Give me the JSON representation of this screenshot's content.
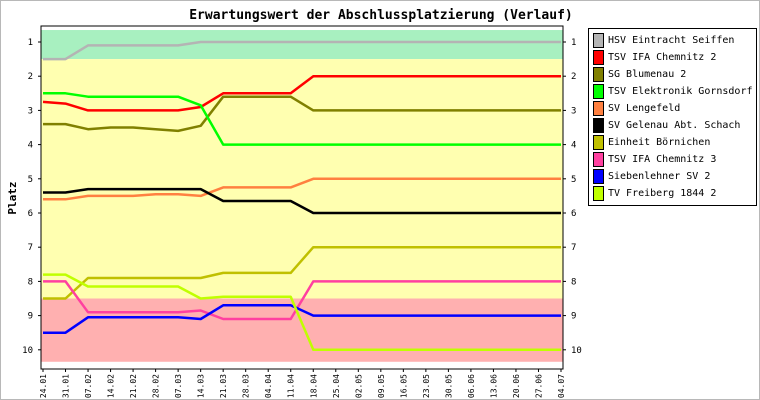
{
  "chart_data": {
    "type": "line",
    "title": "Erwartungswert der Abschlussplatzierung (Verlauf)",
    "ylabel": "Platz",
    "xlabel": "",
    "ylim": [
      1,
      10
    ],
    "y_inverted": true,
    "y_ticks": [
      "1",
      "2",
      "3",
      "4",
      "5",
      "6",
      "7",
      "8",
      "9",
      "10"
    ],
    "x": [
      "24.01",
      "31.01",
      "07.02",
      "14.02",
      "21.02",
      "28.02",
      "07.03",
      "14.03",
      "21.03",
      "28.03",
      "04.04",
      "11.04",
      "18.04",
      "25.04",
      "02.05",
      "09.05",
      "16.05",
      "23.05",
      "30.05",
      "06.06",
      "13.06",
      "20.06",
      "27.06",
      "04.07"
    ],
    "bands": [
      {
        "from": 0.65,
        "to": 1.5,
        "color": "#a8f0c0"
      },
      {
        "from": 1.5,
        "to": 8.5,
        "color": "#ffffb0"
      },
      {
        "from": 8.5,
        "to": 10.35,
        "color": "#ffb0b0"
      }
    ],
    "grid": false,
    "legend_position": "right",
    "series": [
      {
        "name": "HSV Eintracht Seiffen",
        "color": "#b4b4b4",
        "values": [
          1.5,
          1.5,
          1.1,
          1.1,
          1.1,
          1.1,
          1.1,
          1.0,
          1.0,
          1.0,
          1.0,
          1.0,
          1.0,
          1.0,
          1.0,
          1.0,
          1.0,
          1.0,
          1.0,
          1.0,
          1.0,
          1.0,
          1.0,
          1.0
        ]
      },
      {
        "name": "TSV IFA Chemnitz 2",
        "color": "#ff0000",
        "values": [
          2.75,
          2.8,
          3.0,
          3.0,
          3.0,
          3.0,
          3.0,
          2.9,
          2.5,
          2.5,
          2.5,
          2.5,
          2.0,
          2.0,
          2.0,
          2.0,
          2.0,
          2.0,
          2.0,
          2.0,
          2.0,
          2.0,
          2.0,
          2.0
        ]
      },
      {
        "name": "SG Blumenau 2",
        "color": "#808000",
        "values": [
          3.4,
          3.4,
          3.55,
          3.5,
          3.5,
          3.55,
          3.6,
          3.45,
          2.6,
          2.6,
          2.6,
          2.6,
          3.0,
          3.0,
          3.0,
          3.0,
          3.0,
          3.0,
          3.0,
          3.0,
          3.0,
          3.0,
          3.0,
          3.0
        ]
      },
      {
        "name": "TSV Elektronik Gornsdorf",
        "color": "#00ff00",
        "values": [
          2.5,
          2.5,
          2.6,
          2.6,
          2.6,
          2.6,
          2.6,
          2.85,
          4.0,
          4.0,
          4.0,
          4.0,
          4.0,
          4.0,
          4.0,
          4.0,
          4.0,
          4.0,
          4.0,
          4.0,
          4.0,
          4.0,
          4.0,
          4.0
        ]
      },
      {
        "name": "SV Lengefeld",
        "color": "#ff8040",
        "values": [
          5.6,
          5.6,
          5.5,
          5.5,
          5.5,
          5.45,
          5.45,
          5.5,
          5.25,
          5.25,
          5.25,
          5.25,
          5.0,
          5.0,
          5.0,
          5.0,
          5.0,
          5.0,
          5.0,
          5.0,
          5.0,
          5.0,
          5.0,
          5.0
        ]
      },
      {
        "name": "SV Gelenau Abt. Schach",
        "color": "#000000",
        "values": [
          5.4,
          5.4,
          5.3,
          5.3,
          5.3,
          5.3,
          5.3,
          5.3,
          5.65,
          5.65,
          5.65,
          5.65,
          6.0,
          6.0,
          6.0,
          6.0,
          6.0,
          6.0,
          6.0,
          6.0,
          6.0,
          6.0,
          6.0,
          6.0
        ]
      },
      {
        "name": "Einheit Börnichen",
        "color": "#c0c000",
        "values": [
          8.5,
          8.5,
          7.9,
          7.9,
          7.9,
          7.9,
          7.9,
          7.9,
          7.75,
          7.75,
          7.75,
          7.75,
          7.0,
          7.0,
          7.0,
          7.0,
          7.0,
          7.0,
          7.0,
          7.0,
          7.0,
          7.0,
          7.0,
          7.0
        ]
      },
      {
        "name": "TSV IFA Chemnitz 3",
        "color": "#ff40a0",
        "values": [
          8.0,
          8.0,
          8.9,
          8.9,
          8.9,
          8.9,
          8.9,
          8.85,
          9.1,
          9.1,
          9.1,
          9.1,
          8.0,
          8.0,
          8.0,
          8.0,
          8.0,
          8.0,
          8.0,
          8.0,
          8.0,
          8.0,
          8.0,
          8.0
        ]
      },
      {
        "name": "Siebenlehner SV 2",
        "color": "#0000ff",
        "values": [
          9.5,
          9.5,
          9.05,
          9.05,
          9.05,
          9.05,
          9.05,
          9.1,
          8.7,
          8.7,
          8.7,
          8.7,
          9.0,
          9.0,
          9.0,
          9.0,
          9.0,
          9.0,
          9.0,
          9.0,
          9.0,
          9.0,
          9.0,
          9.0
        ]
      },
      {
        "name": "TV Freiberg 1844 2",
        "color": "#c0ff00",
        "values": [
          7.8,
          7.8,
          8.15,
          8.15,
          8.15,
          8.15,
          8.15,
          8.5,
          8.45,
          8.45,
          8.45,
          8.45,
          10.0,
          10.0,
          10.0,
          10.0,
          10.0,
          10.0,
          10.0,
          10.0,
          10.0,
          10.0,
          10.0,
          10.0
        ]
      }
    ]
  }
}
